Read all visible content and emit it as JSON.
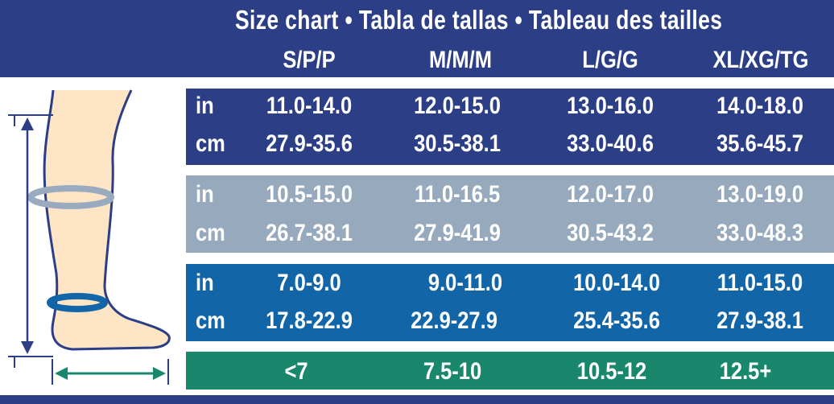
{
  "title": "Size chart • Tabla de tallas • Tableau des tailles",
  "sizes": [
    "S/P/P",
    "M/M/M",
    "L/G/G",
    "XL/XG/TG"
  ],
  "colors": {
    "header": "#2c3f86",
    "band1": "#2c3f86",
    "band2": "#97aabd",
    "band3": "#1266a8",
    "band4": "#19876b"
  },
  "bands": [
    {
      "in_label": "in",
      "cm_label": "cm",
      "in": [
        "11.0-14.0",
        "12.0-15.0",
        "13.0-16.0",
        "14.0-18.0"
      ],
      "cm": [
        "27.9-35.6",
        "30.5-38.1",
        "33.0-40.6",
        "35.6-45.7"
      ]
    },
    {
      "in_label": "in",
      "cm_label": "cm",
      "in": [
        "10.5-15.0",
        "11.0-16.5",
        "12.0-17.0",
        "13.0-19.0"
      ],
      "cm": [
        "26.7-38.1",
        "27.9-41.9",
        "30.5-43.2",
        "33.0-48.3"
      ]
    },
    {
      "in_label": "in",
      "cm_label": "cm",
      "in": [
        "7.0-9.0",
        "9.0-11.0",
        "10.0-14.0",
        "11.0-15.0"
      ],
      "cm": [
        "17.8-22.9",
        "22.9-27.9",
        "25.4-35.6",
        "27.9-38.1"
      ]
    }
  ],
  "shoe": [
    "<7",
    "7.5-10",
    "10.5-12",
    "12.5+"
  ],
  "illustration": {
    "icon": "leg-measurement-icon"
  }
}
